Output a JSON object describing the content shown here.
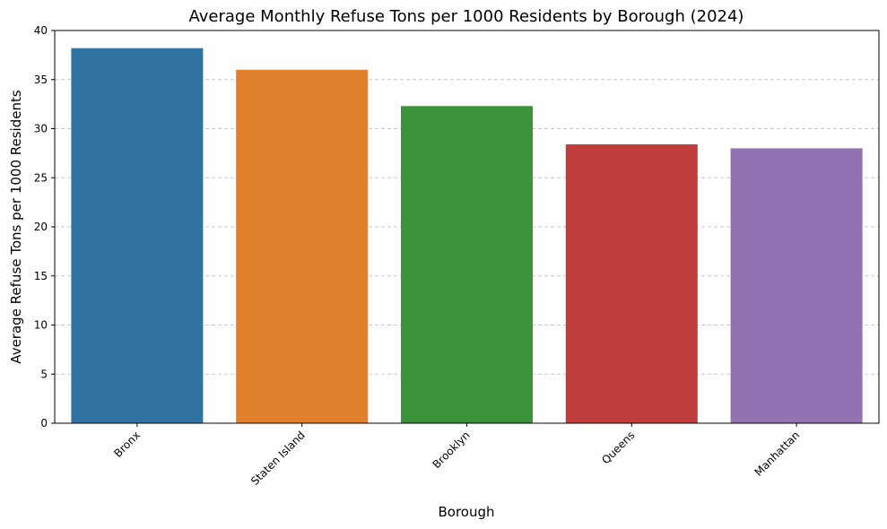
{
  "chart_data": {
    "type": "bar",
    "title": "Average Monthly Refuse Tons per 1000 Residents by Borough (2024)",
    "xlabel": "Borough",
    "ylabel": "Average Refuse Tons per 1000 Residents",
    "categories": [
      "Bronx",
      "Staten Island",
      "Brooklyn",
      "Queens",
      "Manhattan"
    ],
    "values": [
      38.2,
      36.0,
      32.3,
      28.4,
      28.0
    ],
    "colors": [
      "#3274a1",
      "#e1812c",
      "#3a923a",
      "#c03d3e",
      "#9372b2"
    ],
    "ylim": [
      0,
      40
    ],
    "yticks": [
      0,
      5,
      10,
      15,
      20,
      25,
      30,
      35,
      40
    ],
    "grid": "y-dashed",
    "legend": "none"
  }
}
